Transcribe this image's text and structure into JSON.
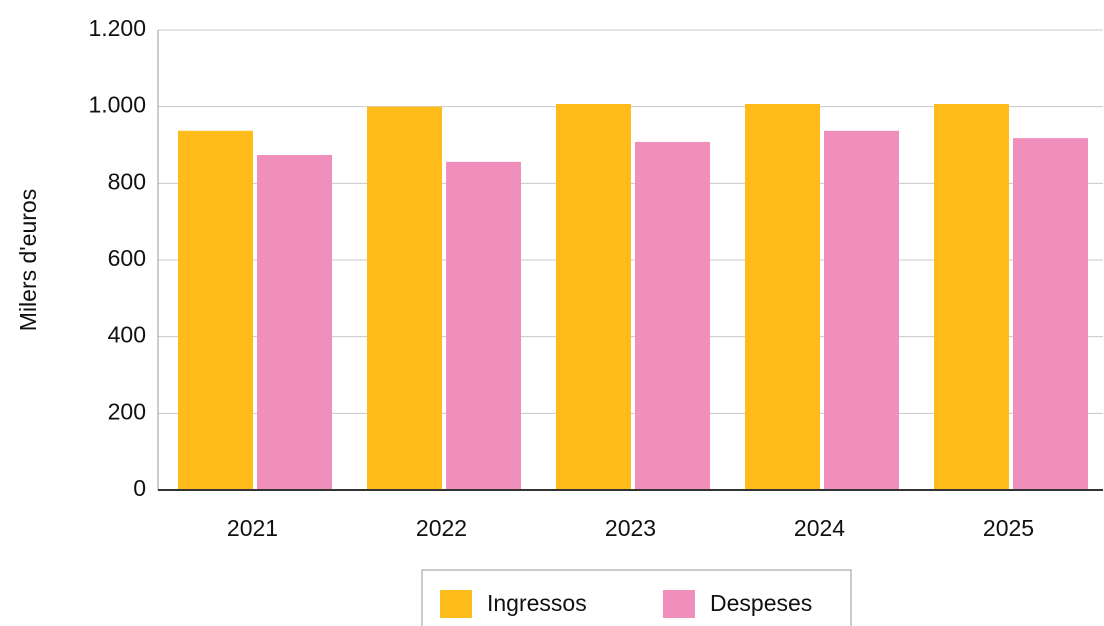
{
  "chart_data": {
    "type": "bar",
    "categories": [
      "2021",
      "2022",
      "2023",
      "2024",
      "2025"
    ],
    "series": [
      {
        "name": "Ingressos",
        "color": "#ffbb1a",
        "values": [
          937,
          1000,
          1007,
          1007,
          1007
        ]
      },
      {
        "name": "Despeses",
        "color": "#f08fbb",
        "values": [
          874,
          856,
          908,
          937,
          918
        ]
      }
    ],
    "y_label": "Milers d'euros",
    "ylim": [
      0,
      1200
    ],
    "yticks": [
      0,
      200,
      400,
      600,
      800,
      {
        "value": 1000,
        "label": "1.000"
      },
      {
        "value": 1200,
        "label": "1.200"
      }
    ],
    "grid": true
  }
}
